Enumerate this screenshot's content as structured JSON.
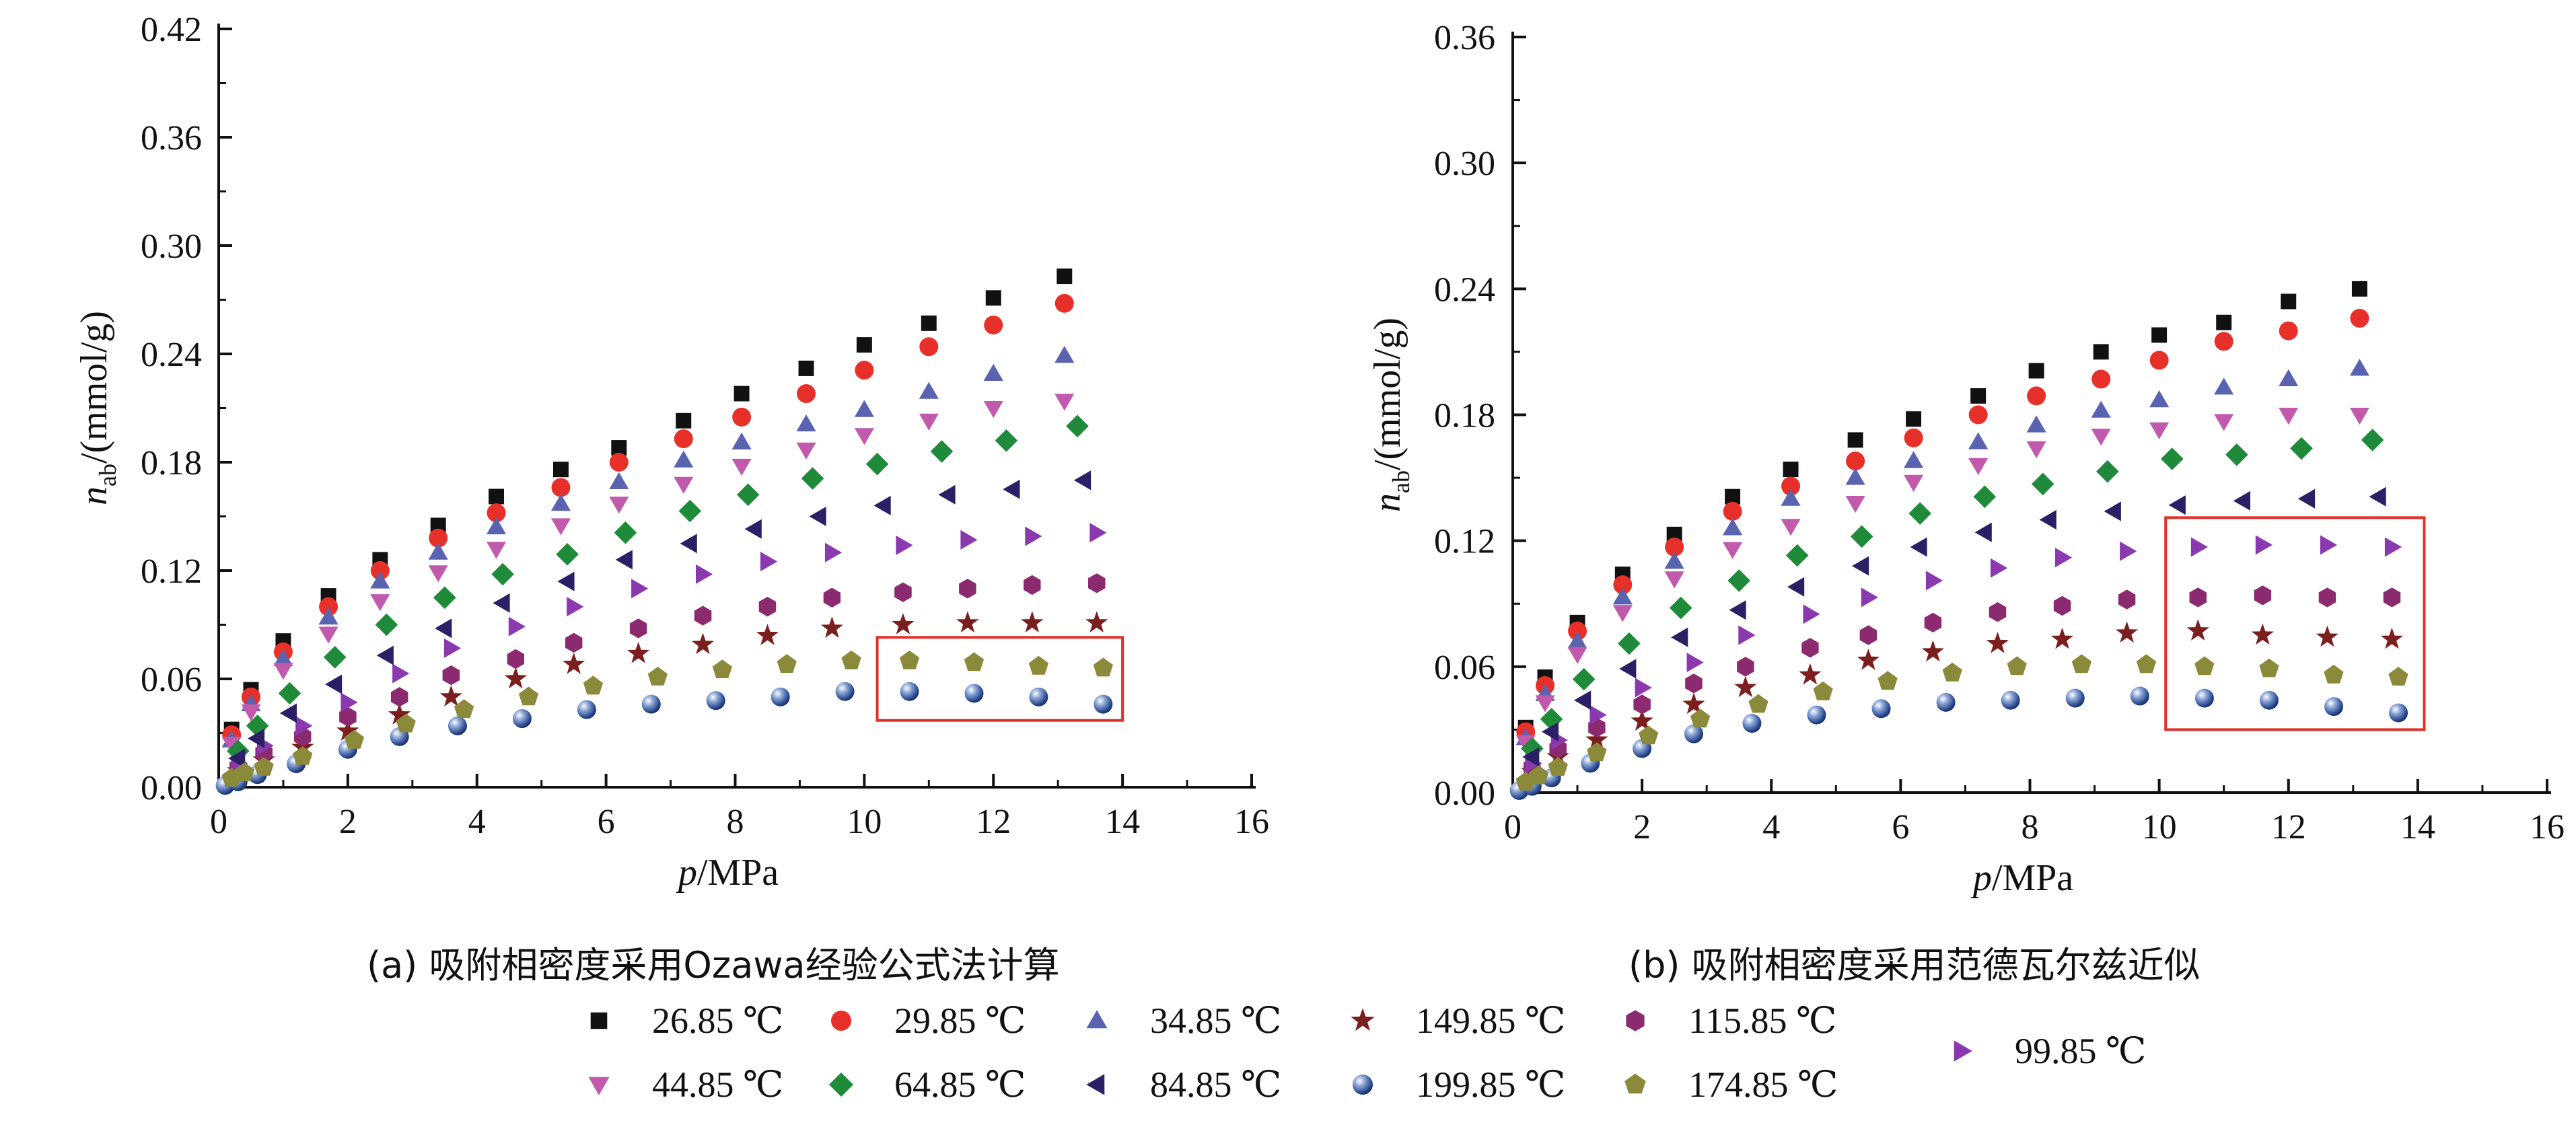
{
  "chart_data": [
    {
      "type": "scatter",
      "panel": "a",
      "caption": "(a) 吸附相密度采用Ozawa经验公式法计算",
      "xlabel_italic": "p",
      "xlabel_rest": "/MPa",
      "ylabel_italic": "n",
      "ylabel_sub": "ab",
      "ylabel_rest": "/(mmol/g)",
      "xlim": [
        0,
        16
      ],
      "ylim": [
        0,
        0.42
      ],
      "xticks": [
        "0",
        "2",
        "4",
        "6",
        "8",
        "10",
        "12",
        "14",
        "16"
      ],
      "yticks": [
        "0.00",
        "0.06",
        "0.12",
        "0.18",
        "0.24",
        "0.30",
        "0.36",
        "0.42"
      ],
      "highlight_box": {
        "x": [
          10.2,
          14.0
        ],
        "y": [
          0.037,
          0.083
        ]
      },
      "series": [
        {
          "name": "26.85 ℃",
          "x": [
            0.2,
            0.5,
            1.0,
            1.7,
            2.5,
            3.4,
            4.3,
            5.3,
            6.2,
            7.2,
            8.1,
            9.1,
            10.0,
            11.0,
            12.0,
            13.1
          ],
          "y": [
            0.032,
            0.054,
            0.081,
            0.106,
            0.126,
            0.145,
            0.161,
            0.176,
            0.188,
            0.203,
            0.218,
            0.232,
            0.245,
            0.257,
            0.271,
            0.283
          ]
        },
        {
          "name": "29.85 ℃",
          "x": [
            0.2,
            0.5,
            1.0,
            1.7,
            2.5,
            3.4,
            4.3,
            5.3,
            6.2,
            7.2,
            8.1,
            9.1,
            10.0,
            11.0,
            12.0,
            13.1
          ],
          "y": [
            0.029,
            0.05,
            0.075,
            0.1,
            0.12,
            0.138,
            0.152,
            0.166,
            0.18,
            0.193,
            0.205,
            0.218,
            0.231,
            0.244,
            0.256,
            0.268
          ]
        },
        {
          "name": "34.85 ℃",
          "x": [
            0.2,
            0.5,
            1.0,
            1.7,
            2.5,
            3.4,
            4.3,
            5.3,
            6.2,
            7.2,
            8.1,
            9.1,
            10.0,
            11.0,
            12.0,
            13.1
          ],
          "y": [
            0.026,
            0.046,
            0.071,
            0.094,
            0.114,
            0.13,
            0.144,
            0.157,
            0.169,
            0.181,
            0.191,
            0.201,
            0.209,
            0.219,
            0.229,
            0.239
          ]
        },
        {
          "name": "149.85 ℃",
          "x": [
            0.3,
            0.7,
            1.3,
            2.0,
            2.8,
            3.6,
            4.6,
            5.5,
            6.5,
            7.5,
            8.5,
            9.5,
            10.6,
            11.6,
            12.6,
            13.6
          ],
          "y": [
            0.009,
            0.015,
            0.022,
            0.031,
            0.04,
            0.05,
            0.06,
            0.068,
            0.074,
            0.079,
            0.084,
            0.088,
            0.09,
            0.091,
            0.091,
            0.091
          ]
        },
        {
          "name": "115.85 ℃",
          "x": [
            0.3,
            0.7,
            1.3,
            2.0,
            2.8,
            3.6,
            4.6,
            5.5,
            6.5,
            7.5,
            8.5,
            9.5,
            10.6,
            11.6,
            12.6,
            13.6
          ],
          "y": [
            0.011,
            0.019,
            0.028,
            0.039,
            0.05,
            0.062,
            0.071,
            0.08,
            0.088,
            0.095,
            0.1,
            0.105,
            0.108,
            0.11,
            0.112,
            0.113
          ]
        },
        {
          "name": "99.85 ℃",
          "x": [
            0.3,
            0.7,
            1.3,
            2.0,
            2.8,
            3.6,
            4.6,
            5.5,
            6.5,
            7.5,
            8.5,
            9.5,
            10.6,
            11.6,
            12.6,
            13.6
          ],
          "y": [
            0.013,
            0.023,
            0.034,
            0.047,
            0.063,
            0.077,
            0.089,
            0.1,
            0.11,
            0.118,
            0.125,
            0.13,
            0.134,
            0.137,
            0.139,
            0.141
          ]
        },
        {
          "name": "44.85 ℃",
          "x": [
            0.2,
            0.5,
            1.0,
            1.7,
            2.5,
            3.4,
            4.3,
            5.3,
            6.2,
            7.2,
            8.1,
            9.1,
            10.0,
            11.0,
            12.0,
            13.1
          ],
          "y": [
            0.024,
            0.042,
            0.065,
            0.085,
            0.103,
            0.119,
            0.132,
            0.145,
            0.157,
            0.168,
            0.178,
            0.187,
            0.195,
            0.203,
            0.21,
            0.214
          ]
        },
        {
          "name": "64.85 ℃",
          "x": [
            0.3,
            0.6,
            1.1,
            1.8,
            2.6,
            3.5,
            4.4,
            5.4,
            6.3,
            7.3,
            8.2,
            9.2,
            10.2,
            11.2,
            12.2,
            13.3
          ],
          "y": [
            0.02,
            0.034,
            0.052,
            0.072,
            0.09,
            0.105,
            0.118,
            0.129,
            0.141,
            0.153,
            0.162,
            0.171,
            0.179,
            0.186,
            0.192,
            0.2
          ]
        },
        {
          "name": "84.85 ℃",
          "x": [
            0.3,
            0.6,
            1.1,
            1.8,
            2.6,
            3.5,
            4.4,
            5.4,
            6.3,
            7.3,
            8.3,
            9.3,
            10.3,
            11.3,
            12.3,
            13.4
          ],
          "y": [
            0.016,
            0.027,
            0.041,
            0.057,
            0.073,
            0.088,
            0.102,
            0.114,
            0.126,
            0.135,
            0.143,
            0.15,
            0.156,
            0.162,
            0.165,
            0.17
          ]
        },
        {
          "name": "199.85 ℃",
          "x": [
            0.1,
            0.3,
            0.6,
            1.2,
            2.0,
            2.8,
            3.7,
            4.7,
            5.7,
            6.7,
            7.7,
            8.7,
            9.7,
            10.7,
            11.7,
            12.7,
            13.7
          ],
          "y": [
            0.001,
            0.003,
            0.007,
            0.013,
            0.021,
            0.028,
            0.034,
            0.038,
            0.043,
            0.046,
            0.048,
            0.05,
            0.053,
            0.053,
            0.052,
            0.05,
            0.046
          ]
        },
        {
          "name": "174.85 ℃",
          "x": [
            0.2,
            0.4,
            0.7,
            1.3,
            2.1,
            2.9,
            3.8,
            4.8,
            5.8,
            6.8,
            7.8,
            8.8,
            9.8,
            10.7,
            11.7,
            12.7,
            13.7
          ],
          "y": [
            0.005,
            0.008,
            0.011,
            0.017,
            0.026,
            0.035,
            0.043,
            0.05,
            0.056,
            0.061,
            0.065,
            0.068,
            0.07,
            0.07,
            0.069,
            0.067,
            0.066
          ]
        }
      ]
    },
    {
      "type": "scatter",
      "panel": "b",
      "caption": "(b) 吸附相密度采用范德瓦尔兹近似",
      "xlabel_italic": "p",
      "xlabel_rest": "/MPa",
      "ylabel_italic": "n",
      "ylabel_sub": "ab",
      "ylabel_rest": "/(mmol/g)",
      "xlim": [
        0,
        16
      ],
      "ylim": [
        0,
        0.36
      ],
      "xticks": [
        "0",
        "2",
        "4",
        "6",
        "8",
        "10",
        "12",
        "14",
        "16"
      ],
      "yticks": [
        "0.00",
        "0.06",
        "0.12",
        "0.18",
        "0.24",
        "0.30",
        "0.36"
      ],
      "highlight_box": {
        "x": [
          10.1,
          14.1
        ],
        "y": [
          0.03,
          0.131
        ]
      },
      "series": [
        {
          "name": "26.85 ℃",
          "x": [
            0.2,
            0.5,
            1.0,
            1.7,
            2.5,
            3.4,
            4.3,
            5.3,
            6.2,
            7.2,
            8.1,
            9.1,
            10.0,
            11.0,
            12.0,
            13.1
          ],
          "y": [
            0.031,
            0.055,
            0.081,
            0.104,
            0.123,
            0.141,
            0.154,
            0.168,
            0.178,
            0.189,
            0.201,
            0.21,
            0.218,
            0.224,
            0.234,
            0.24
          ]
        },
        {
          "name": "29.85 ℃",
          "x": [
            0.2,
            0.5,
            1.0,
            1.7,
            2.5,
            3.4,
            4.3,
            5.3,
            6.2,
            7.2,
            8.1,
            9.1,
            10.0,
            11.0,
            12.0,
            13.1
          ],
          "y": [
            0.029,
            0.051,
            0.077,
            0.099,
            0.117,
            0.134,
            0.146,
            0.158,
            0.169,
            0.18,
            0.189,
            0.197,
            0.206,
            0.215,
            0.22,
            0.226
          ]
        },
        {
          "name": "34.85 ℃",
          "x": [
            0.2,
            0.5,
            1.0,
            1.7,
            2.5,
            3.4,
            4.3,
            5.3,
            6.2,
            7.2,
            8.1,
            9.1,
            10.0,
            11.0,
            12.0,
            13.1
          ],
          "y": [
            0.026,
            0.047,
            0.072,
            0.093,
            0.11,
            0.126,
            0.14,
            0.15,
            0.158,
            0.167,
            0.175,
            0.182,
            0.187,
            0.193,
            0.197,
            0.202
          ]
        },
        {
          "name": "149.85 ℃",
          "x": [
            0.3,
            0.7,
            1.3,
            2.0,
            2.8,
            3.6,
            4.6,
            5.5,
            6.5,
            7.5,
            8.5,
            9.5,
            10.6,
            11.6,
            12.6,
            13.6
          ],
          "y": [
            0.01,
            0.017,
            0.025,
            0.034,
            0.042,
            0.05,
            0.056,
            0.063,
            0.067,
            0.071,
            0.073,
            0.076,
            0.077,
            0.075,
            0.074,
            0.073
          ]
        },
        {
          "name": "115.85 ℃",
          "x": [
            0.3,
            0.7,
            1.3,
            2.0,
            2.8,
            3.6,
            4.6,
            5.5,
            6.5,
            7.5,
            8.5,
            9.5,
            10.6,
            11.6,
            12.6,
            13.6
          ],
          "y": [
            0.012,
            0.021,
            0.031,
            0.042,
            0.052,
            0.06,
            0.069,
            0.075,
            0.081,
            0.086,
            0.089,
            0.092,
            0.093,
            0.094,
            0.093,
            0.093
          ]
        },
        {
          "name": "99.85 ℃",
          "x": [
            0.3,
            0.7,
            1.3,
            2.0,
            2.8,
            3.6,
            4.6,
            5.5,
            6.5,
            7.5,
            8.5,
            9.5,
            10.6,
            11.6,
            12.6,
            13.6
          ],
          "y": [
            0.014,
            0.025,
            0.037,
            0.05,
            0.062,
            0.075,
            0.085,
            0.093,
            0.101,
            0.107,
            0.112,
            0.115,
            0.117,
            0.118,
            0.118,
            0.117
          ]
        },
        {
          "name": "44.85 ℃",
          "x": [
            0.2,
            0.5,
            1.0,
            1.7,
            2.5,
            3.4,
            4.3,
            5.3,
            6.2,
            7.2,
            8.1,
            9.1,
            10.0,
            11.0,
            12.0,
            13.1
          ],
          "y": [
            0.024,
            0.043,
            0.066,
            0.086,
            0.102,
            0.116,
            0.127,
            0.138,
            0.148,
            0.156,
            0.164,
            0.17,
            0.173,
            0.177,
            0.18,
            0.18
          ]
        },
        {
          "name": "64.85 ℃",
          "x": [
            0.3,
            0.6,
            1.1,
            1.8,
            2.6,
            3.5,
            4.4,
            5.4,
            6.3,
            7.3,
            8.2,
            9.2,
            10.2,
            11.2,
            12.2,
            13.3
          ],
          "y": [
            0.021,
            0.035,
            0.054,
            0.071,
            0.088,
            0.101,
            0.113,
            0.122,
            0.133,
            0.141,
            0.147,
            0.153,
            0.159,
            0.161,
            0.164,
            0.168
          ]
        },
        {
          "name": "84.85 ℃",
          "x": [
            0.3,
            0.6,
            1.1,
            1.8,
            2.6,
            3.5,
            4.4,
            5.4,
            6.3,
            7.3,
            8.3,
            9.3,
            10.3,
            11.3,
            12.3,
            13.4
          ],
          "y": [
            0.017,
            0.029,
            0.044,
            0.059,
            0.074,
            0.087,
            0.098,
            0.108,
            0.117,
            0.124,
            0.13,
            0.134,
            0.137,
            0.139,
            0.14,
            0.141
          ]
        },
        {
          "name": "199.85 ℃",
          "x": [
            0.1,
            0.3,
            0.6,
            1.2,
            2.0,
            2.8,
            3.7,
            4.7,
            5.7,
            6.7,
            7.7,
            8.7,
            9.7,
            10.7,
            11.7,
            12.7,
            13.7
          ],
          "y": [
            0.001,
            0.003,
            0.007,
            0.014,
            0.021,
            0.028,
            0.033,
            0.037,
            0.04,
            0.043,
            0.044,
            0.045,
            0.046,
            0.045,
            0.044,
            0.041,
            0.038
          ]
        },
        {
          "name": "174.85 ℃",
          "x": [
            0.2,
            0.4,
            0.7,
            1.3,
            2.1,
            2.9,
            3.8,
            4.8,
            5.8,
            6.8,
            7.8,
            8.8,
            9.8,
            10.7,
            11.7,
            12.7,
            13.7
          ],
          "y": [
            0.005,
            0.008,
            0.012,
            0.019,
            0.027,
            0.035,
            0.042,
            0.048,
            0.053,
            0.057,
            0.06,
            0.061,
            0.061,
            0.06,
            0.059,
            0.056,
            0.055
          ]
        }
      ]
    }
  ],
  "legend": [
    {
      "label": "26.85 ℃",
      "marker": "square",
      "color": "#111111"
    },
    {
      "label": "29.85 ℃",
      "marker": "circle",
      "color": "#e8302a"
    },
    {
      "label": "34.85 ℃",
      "marker": "triangle-up",
      "color": "#5a63b0"
    },
    {
      "label": "149.85 ℃",
      "marker": "star",
      "color": "#7a1e1e"
    },
    {
      "label": "115.85 ℃",
      "marker": "hexagon",
      "color": "#8b2a6e"
    },
    {
      "label": "99.85 ℃",
      "marker": "triangle-right",
      "color": "#8a3aae"
    },
    {
      "label": "44.85 ℃",
      "marker": "triangle-down",
      "color": "#c15aac"
    },
    {
      "label": "64.85 ℃",
      "marker": "diamond",
      "color": "#1f8a3a"
    },
    {
      "label": "84.85 ℃",
      "marker": "triangle-left",
      "color": "#2b2066"
    },
    {
      "label": "199.85 ℃",
      "marker": "sphere",
      "color": "#4a6bb0"
    },
    {
      "label": "174.85 ℃",
      "marker": "pentagon",
      "color": "#8a8a3a"
    }
  ],
  "highlight_color": "#e0302a"
}
